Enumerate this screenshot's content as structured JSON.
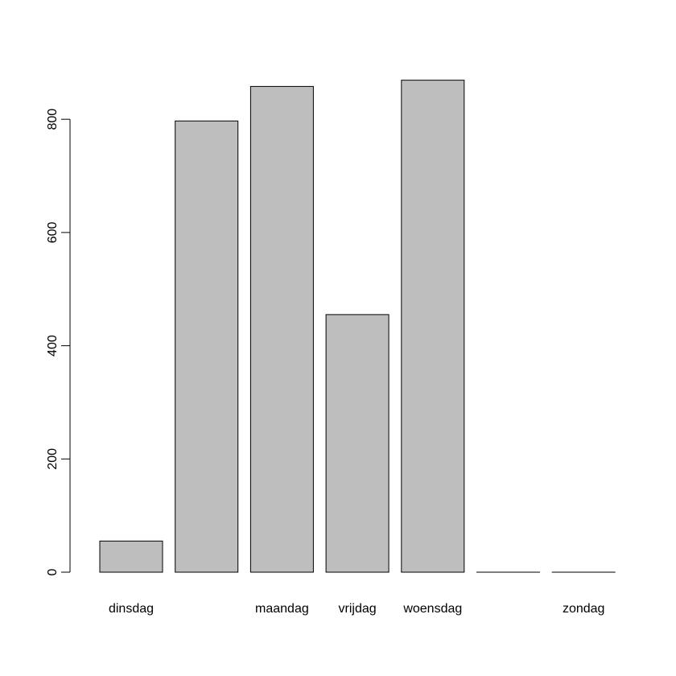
{
  "chart_data": {
    "type": "bar",
    "title": "",
    "xlabel": "",
    "ylabel": "",
    "categories": [
      "dinsdag",
      "",
      "maandag",
      "vrijdag",
      "woensdag",
      "",
      "zondag"
    ],
    "values": [
      55,
      797,
      858,
      455,
      869,
      0,
      0
    ],
    "ylim": [
      0,
      869
    ],
    "yticks": [
      0,
      200,
      400,
      600,
      800
    ],
    "ytick_labels": [
      "0",
      "200",
      "400",
      "600",
      "800"
    ],
    "grid": false,
    "legend": "none",
    "colors": {
      "bar_fill": "#bebebe",
      "bar_stroke": "#000000",
      "axis": "#000000",
      "background": "#ffffff"
    }
  }
}
